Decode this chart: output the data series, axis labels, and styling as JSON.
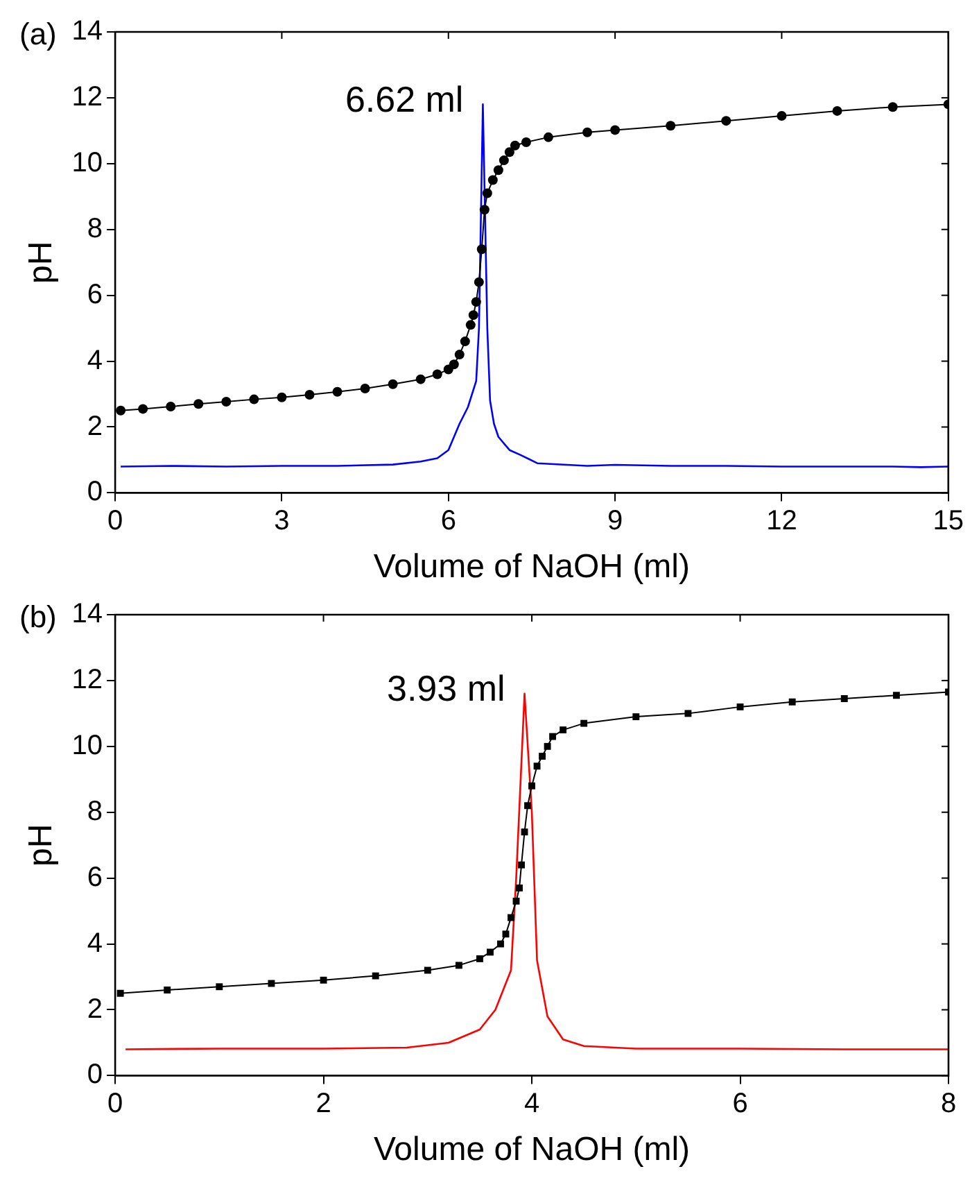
{
  "chart_data": [
    {
      "type": "line",
      "xlabel": "Volume of NaOH (ml)",
      "ylabel": "pH",
      "xlim": [
        0,
        15
      ],
      "xticks": [
        0,
        3,
        6,
        9,
        12,
        15
      ],
      "ylim": [
        0,
        14
      ],
      "yticks": [
        0,
        2,
        4,
        6,
        8,
        10,
        12,
        14
      ],
      "annotations": [
        "(a)",
        {
          "text": "6.62 ml",
          "x": 6.62,
          "y": 11.8
        }
      ],
      "series": [
        {
          "color": "#000000",
          "marker": "circle",
          "x": [
            0.1,
            0.5,
            1,
            1.5,
            2,
            2.5,
            3,
            3.5,
            4,
            4.5,
            5,
            5.5,
            5.8,
            6.0,
            6.1,
            6.2,
            6.3,
            6.4,
            6.45,
            6.5,
            6.55,
            6.6,
            6.65,
            6.7,
            6.8,
            6.9,
            7.0,
            7.1,
            7.2,
            7.4,
            7.8,
            8.5,
            9,
            10,
            11,
            12,
            13,
            14,
            15
          ],
          "values": [
            2.5,
            2.55,
            2.62,
            2.7,
            2.77,
            2.84,
            2.9,
            2.98,
            3.07,
            3.17,
            3.3,
            3.45,
            3.6,
            3.75,
            3.9,
            4.2,
            4.6,
            5.1,
            5.4,
            5.8,
            6.4,
            7.4,
            8.6,
            9.1,
            9.5,
            9.8,
            10.1,
            10.35,
            10.55,
            10.65,
            10.8,
            10.95,
            11.02,
            11.15,
            11.3,
            11.45,
            11.6,
            11.72,
            11.8
          ]
        },
        {
          "color": "#0000ff",
          "marker": "none",
          "x": [
            0.1,
            1,
            2,
            3,
            4,
            5,
            5.5,
            5.8,
            6.0,
            6.2,
            6.35,
            6.5,
            6.55,
            6.62,
            6.7,
            6.75,
            6.82,
            6.9,
            7.1,
            7.3,
            7.6,
            8.5,
            9,
            10,
            11,
            12,
            13,
            14,
            14.5,
            15
          ],
          "values": [
            0.8,
            0.82,
            0.8,
            0.82,
            0.82,
            0.86,
            0.95,
            1.05,
            1.3,
            2.1,
            2.6,
            3.4,
            5,
            11.8,
            5,
            2.8,
            2.1,
            1.7,
            1.3,
            1.15,
            0.9,
            0.82,
            0.85,
            0.82,
            0.82,
            0.8,
            0.8,
            0.8,
            0.78,
            0.8
          ]
        }
      ]
    },
    {
      "type": "line",
      "xlabel": "Volume of NaOH (ml)",
      "ylabel": "pH",
      "xlim": [
        0,
        8
      ],
      "xticks": [
        0,
        2,
        4,
        6,
        8
      ],
      "ylim": [
        0,
        14
      ],
      "yticks": [
        0,
        2,
        4,
        6,
        8,
        10,
        12,
        14
      ],
      "annotations": [
        "(b)",
        {
          "text": "3.93 ml",
          "x": 3.93,
          "y": 11.6
        }
      ],
      "series": [
        {
          "color": "#000000",
          "marker": "square",
          "x": [
            0.05,
            0.5,
            1,
            1.5,
            2,
            2.5,
            3,
            3.3,
            3.5,
            3.6,
            3.7,
            3.75,
            3.8,
            3.85,
            3.88,
            3.9,
            3.93,
            3.96,
            4.0,
            4.05,
            4.1,
            4.15,
            4.2,
            4.3,
            4.5,
            5,
            5.5,
            6,
            6.5,
            7,
            7.5,
            8
          ],
          "values": [
            2.5,
            2.6,
            2.7,
            2.8,
            2.9,
            3.03,
            3.2,
            3.35,
            3.55,
            3.75,
            4.0,
            4.3,
            4.8,
            5.3,
            5.7,
            6.4,
            7.4,
            8.2,
            8.8,
            9.4,
            9.7,
            10.0,
            10.3,
            10.5,
            10.7,
            10.9,
            11.0,
            11.2,
            11.35,
            11.45,
            11.55,
            11.65
          ]
        },
        {
          "color": "#ff0000",
          "marker": "none",
          "x": [
            0.1,
            1,
            2,
            2.8,
            3.2,
            3.5,
            3.65,
            3.8,
            3.85,
            3.93,
            4.0,
            4.05,
            4.15,
            4.3,
            4.5,
            5,
            6,
            7,
            8
          ],
          "values": [
            0.8,
            0.82,
            0.82,
            0.85,
            1.0,
            1.4,
            2.0,
            3.2,
            6,
            11.6,
            8,
            3.5,
            1.8,
            1.1,
            0.9,
            0.82,
            0.82,
            0.8,
            0.8
          ]
        }
      ]
    }
  ]
}
